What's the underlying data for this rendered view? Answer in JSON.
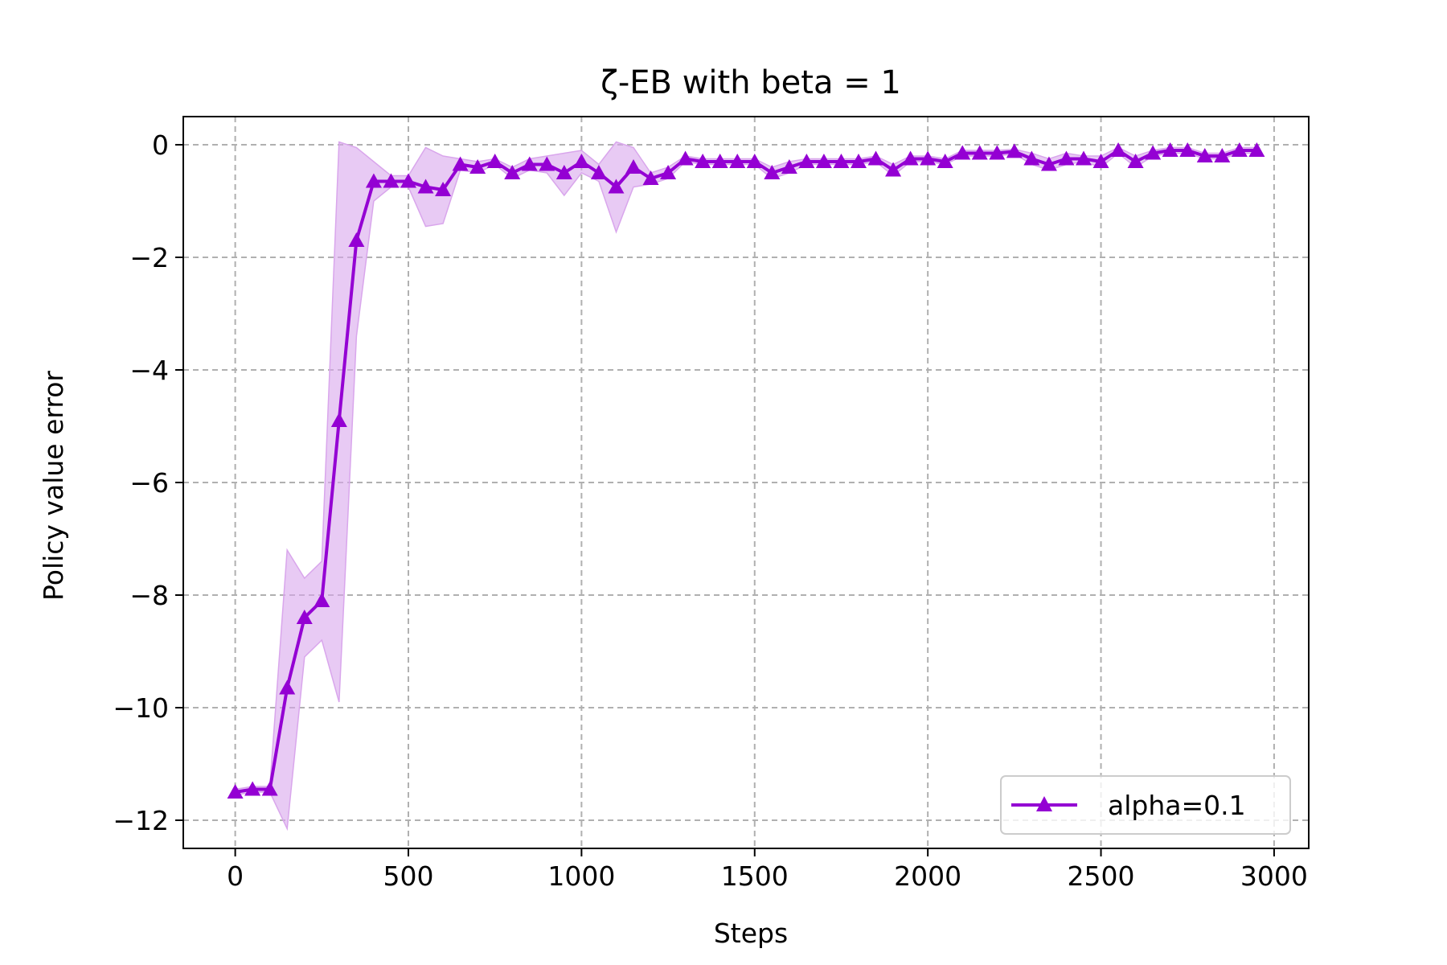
{
  "chart_data": {
    "type": "line",
    "title": "ζ-EB with beta = 1",
    "xlabel": "Steps",
    "ylabel": "Policy value error",
    "xlim": [
      -150,
      3100
    ],
    "ylim": [
      -12.5,
      0.5
    ],
    "xticks": [
      0,
      500,
      1000,
      1500,
      2000,
      2500,
      3000
    ],
    "yticks": [
      0,
      -2,
      -4,
      -6,
      -8,
      -10,
      -12
    ],
    "xtick_labels": [
      "0",
      "500",
      "1000",
      "1500",
      "2000",
      "2500",
      "3000"
    ],
    "ytick_labels": [
      "0",
      "−2",
      "−4",
      "−6",
      "−8",
      "−10",
      "−12"
    ],
    "grid": true,
    "legend_position": "bottom-right",
    "series": [
      {
        "name": "alpha=0.1",
        "color": "#9400d3",
        "band_color": "#d9a6ec",
        "marker": "triangle-up",
        "x": [
          0,
          50,
          100,
          150,
          200,
          250,
          300,
          350,
          400,
          450,
          500,
          550,
          600,
          650,
          700,
          750,
          800,
          850,
          900,
          950,
          1000,
          1050,
          1100,
          1150,
          1200,
          1250,
          1300,
          1350,
          1400,
          1450,
          1500,
          1550,
          1600,
          1650,
          1700,
          1750,
          1800,
          1850,
          1900,
          1950,
          2000,
          2050,
          2100,
          2150,
          2200,
          2250,
          2300,
          2350,
          2400,
          2450,
          2500,
          2550,
          2600,
          2650,
          2700,
          2750,
          2800,
          2850,
          2900,
          2950
        ],
        "y": [
          -11.5,
          -11.45,
          -11.45,
          -9.65,
          -8.4,
          -8.1,
          -4.9,
          -1.7,
          -0.65,
          -0.65,
          -0.65,
          -0.75,
          -0.8,
          -0.35,
          -0.4,
          -0.3,
          -0.5,
          -0.35,
          -0.35,
          -0.5,
          -0.3,
          -0.5,
          -0.75,
          -0.4,
          -0.6,
          -0.5,
          -0.25,
          -0.3,
          -0.3,
          -0.3,
          -0.3,
          -0.5,
          -0.4,
          -0.3,
          -0.3,
          -0.3,
          -0.3,
          -0.25,
          -0.45,
          -0.25,
          -0.25,
          -0.3,
          -0.15,
          -0.15,
          -0.15,
          -0.12,
          -0.25,
          -0.35,
          -0.25,
          -0.25,
          -0.3,
          -0.1,
          -0.3,
          -0.15,
          -0.1,
          -0.1,
          -0.2,
          -0.2,
          -0.1,
          -0.1
        ],
        "y_upper": [
          -11.45,
          -11.4,
          -11.4,
          -7.2,
          -7.7,
          -7.4,
          0.05,
          -0.05,
          -0.3,
          -0.55,
          -0.55,
          -0.05,
          -0.2,
          -0.25,
          -0.3,
          -0.25,
          -0.4,
          -0.25,
          -0.2,
          -0.15,
          -0.1,
          -0.35,
          0.05,
          -0.05,
          -0.5,
          -0.4,
          -0.2,
          -0.25,
          -0.25,
          -0.25,
          -0.25,
          -0.4,
          -0.3,
          -0.25,
          -0.25,
          -0.25,
          -0.25,
          -0.2,
          -0.35,
          -0.2,
          -0.2,
          -0.25,
          -0.1,
          -0.1,
          -0.1,
          -0.08,
          -0.15,
          -0.25,
          -0.15,
          -0.2,
          -0.2,
          -0.05,
          -0.2,
          -0.1,
          -0.05,
          -0.05,
          -0.15,
          -0.15,
          -0.05,
          -0.05
        ],
        "y_lower": [
          -11.55,
          -11.5,
          -11.5,
          -12.15,
          -9.1,
          -8.8,
          -9.9,
          -3.4,
          -1.0,
          -0.75,
          -0.75,
          -1.45,
          -1.4,
          -0.45,
          -0.5,
          -0.35,
          -0.6,
          -0.45,
          -0.5,
          -0.9,
          -0.5,
          -0.65,
          -1.55,
          -0.75,
          -0.7,
          -0.6,
          -0.3,
          -0.35,
          -0.35,
          -0.35,
          -0.35,
          -0.6,
          -0.5,
          -0.35,
          -0.35,
          -0.35,
          -0.35,
          -0.3,
          -0.55,
          -0.3,
          -0.3,
          -0.35,
          -0.2,
          -0.2,
          -0.2,
          -0.16,
          -0.35,
          -0.45,
          -0.35,
          -0.3,
          -0.4,
          -0.15,
          -0.4,
          -0.2,
          -0.15,
          -0.15,
          -0.25,
          -0.25,
          -0.15,
          -0.15
        ]
      }
    ]
  }
}
